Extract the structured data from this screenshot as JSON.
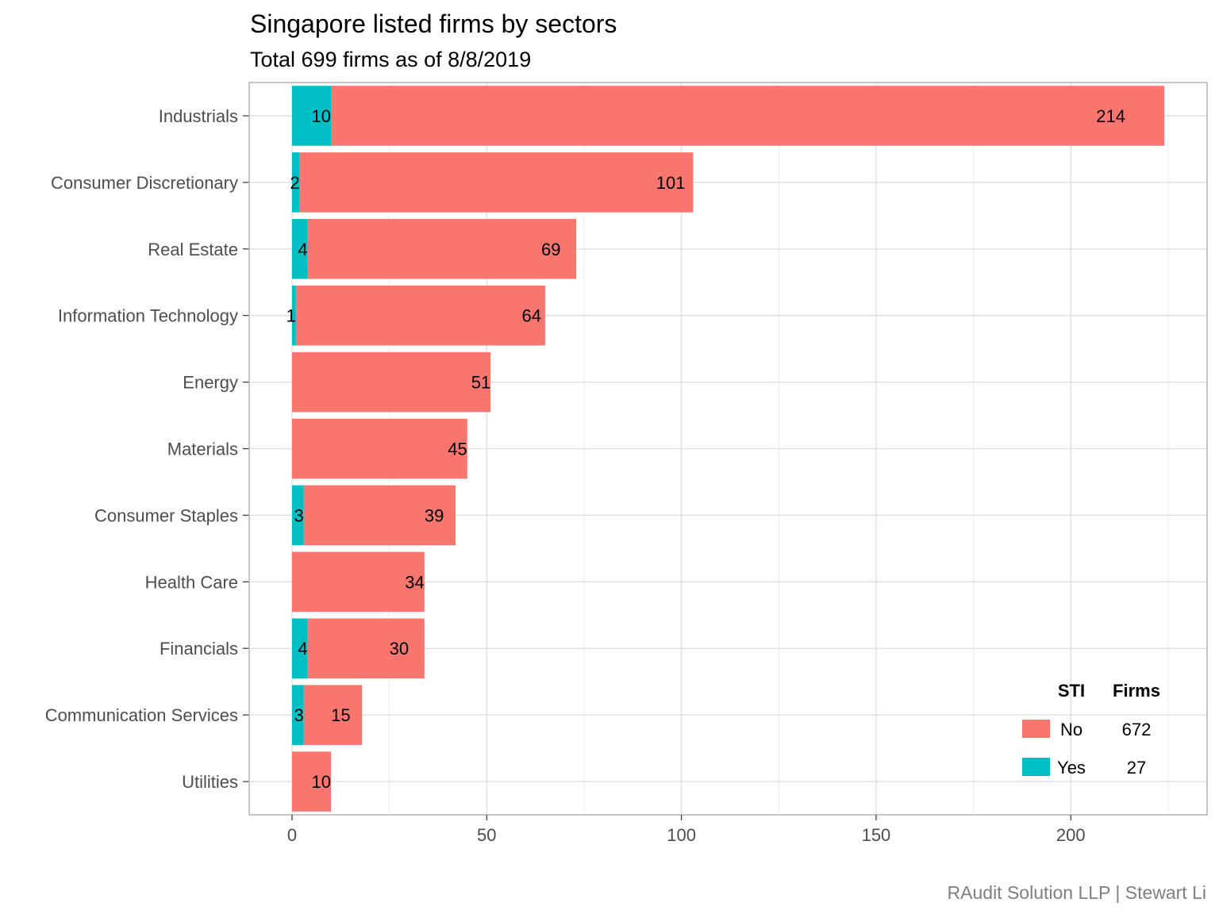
{
  "chart_data": {
    "type": "bar",
    "orientation": "horizontal",
    "stacked": true,
    "title": "Singapore listed firms by sectors",
    "subtitle": "Total 699 firms as of 8/8/2019",
    "caption": "RAudit Solution LLP | Stewart Li",
    "xlabel": "",
    "ylabel": "",
    "xlim": [
      -11,
      235
    ],
    "x_ticks": [
      0,
      50,
      100,
      150,
      200
    ],
    "x_minor_ticks": [
      25,
      75,
      125,
      175,
      225
    ],
    "grid": true,
    "categories": [
      "Industrials",
      "Consumer Discretionary",
      "Real Estate",
      "Information Technology",
      "Energy",
      "Materials",
      "Consumer Staples",
      "Health Care",
      "Financials",
      "Communication Services",
      "Utilities"
    ],
    "series": [
      {
        "name": "Yes",
        "color": "#00BFC4",
        "values": [
          10,
          2,
          4,
          1,
          0,
          0,
          3,
          0,
          4,
          3,
          0
        ]
      },
      {
        "name": "No",
        "color": "#F8766D",
        "values": [
          214,
          101,
          69,
          64,
          51,
          45,
          39,
          34,
          30,
          15,
          10
        ]
      }
    ],
    "legend": {
      "placement": "bottom-right",
      "header_sti": "STI",
      "header_firms": "Firms",
      "entries": [
        {
          "label": "No",
          "firms": "672",
          "color": "#F8766D"
        },
        {
          "label": "Yes",
          "firms": "27",
          "color": "#00BFC4"
        }
      ]
    }
  }
}
